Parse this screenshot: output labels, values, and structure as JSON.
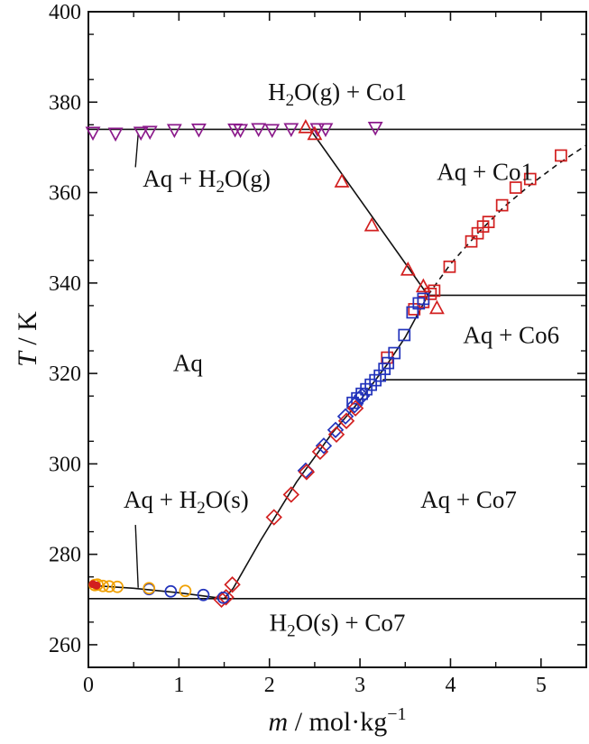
{
  "chart_data": {
    "type": "scatter",
    "xlabel": {
      "symbol": "m",
      "sep": " / ",
      "unit": "mol",
      "dot": "·",
      "unit2": "kg",
      "exp": "−1"
    },
    "ylabel": {
      "symbol": "T",
      "sep": " / K"
    },
    "xlim": [
      0,
      5.5
    ],
    "ylim": [
      255,
      400
    ],
    "x_ticks": [
      "0",
      "1",
      "2",
      "3",
      "4",
      "5"
    ],
    "x_tick_values": [
      0,
      1,
      2,
      3,
      4,
      5
    ],
    "y_ticks": [
      "260",
      "280",
      "300",
      "320",
      "340",
      "360",
      "380",
      "400"
    ],
    "y_tick_values": [
      260,
      280,
      300,
      320,
      340,
      360,
      380,
      400
    ],
    "series": [
      {
        "marker": "triangle-down",
        "color": "#8b1a8b",
        "x": [
          0.05,
          0.3,
          0.58,
          0.68,
          0.95,
          1.22,
          1.62,
          1.68,
          1.88,
          2.03,
          2.24,
          2.53,
          2.62,
          3.17
        ],
        "y": [
          373.2,
          373.0,
          373.2,
          373.4,
          373.8,
          373.9,
          373.9,
          373.8,
          374.0,
          373.8,
          374.0,
          374.0,
          374.0,
          374.3
        ]
      },
      {
        "marker": "triangle-up",
        "color": "#d21f1f",
        "x": [
          2.4,
          2.5,
          2.8,
          3.13,
          3.53,
          3.7,
          3.85
        ],
        "y": [
          374.5,
          373.0,
          362.5,
          352.8,
          343.0,
          339.3,
          334.5
        ]
      },
      {
        "marker": "square",
        "color": "#d21f1f",
        "x": [
          3.3,
          3.6,
          3.7,
          3.78,
          3.82,
          3.99,
          4.23,
          4.3,
          4.36,
          4.42,
          4.57,
          4.72,
          4.88,
          5.22
        ],
        "y": [
          323.5,
          334.2,
          335.8,
          337.6,
          338.3,
          343.6,
          349.2,
          351.0,
          352.5,
          353.5,
          357.2,
          361.1,
          363.0,
          368.2
        ]
      },
      {
        "marker": "square",
        "color": "#2233bb",
        "x": [
          2.92,
          2.97,
          3.02,
          3.07,
          3.12,
          3.17,
          3.22,
          3.27,
          3.31,
          3.38,
          3.49,
          3.58,
          3.65,
          3.7
        ],
        "y": [
          313.5,
          314.5,
          315.5,
          316.5,
          317.5,
          318.5,
          319.5,
          321.0,
          322.3,
          324.5,
          328.5,
          333.5,
          335.5,
          336.5
        ]
      },
      {
        "marker": "diamond",
        "color": "#2233bb",
        "x": [
          2.4,
          2.6,
          2.73,
          2.84,
          2.94,
          3.02
        ],
        "y": [
          298.5,
          304.0,
          307.5,
          310.5,
          313.0,
          315.0
        ]
      },
      {
        "marker": "diamond",
        "color": "#d21f1f",
        "x": [
          1.47,
          1.52,
          1.59,
          2.05,
          2.24,
          2.41,
          2.56,
          2.74,
          2.85,
          2.95
        ],
        "y": [
          270.0,
          270.5,
          273.3,
          288.2,
          293.2,
          298.2,
          302.7,
          306.5,
          309.5,
          312.3
        ]
      },
      {
        "marker": "circle",
        "color": "#2233bb",
        "x": [
          0.67,
          0.91,
          1.27,
          1.49
        ],
        "y": [
          272.3,
          271.8,
          271.0,
          270.4
        ]
      },
      {
        "marker": "circle",
        "color": "#f0a000",
        "x": [
          0.07,
          0.1,
          0.16,
          0.23,
          0.32,
          0.67,
          1.07
        ],
        "y": [
          273.2,
          273.3,
          273.0,
          272.9,
          272.8,
          272.5,
          271.9
        ]
      },
      {
        "marker": "circle-filled",
        "color": "#d21f1f",
        "x": [
          0.05,
          0.09
        ],
        "y": [
          273.4,
          273.1
        ]
      }
    ],
    "lines": [
      {
        "style": "solid",
        "x": [
          0,
          5.5
        ],
        "y": [
          374.0,
          374.0
        ]
      },
      {
        "style": "solid",
        "x": [
          2.45,
          3.75
        ],
        "y": [
          374.0,
          337.3
        ]
      },
      {
        "style": "solid",
        "x": [
          3.75,
          5.5
        ],
        "y": [
          337.3,
          337.3
        ]
      },
      {
        "style": "solid",
        "x": [
          3.25,
          5.5
        ],
        "y": [
          318.6,
          318.6
        ]
      },
      {
        "style": "solid",
        "x": [
          0,
          5.5
        ],
        "y": [
          270.2,
          270.2
        ]
      },
      {
        "style": "solid",
        "x": [
          0,
          0.5,
          1.0,
          1.5
        ],
        "y": [
          273.15,
          272.5,
          271.5,
          270.2
        ]
      },
      {
        "style": "solid",
        "x": [
          1.5,
          1.6,
          1.9,
          2.3,
          2.7,
          3.0,
          3.3,
          3.5,
          3.75
        ],
        "y": [
          270.2,
          272.5,
          283.0,
          296.0,
          307.0,
          314.0,
          322.0,
          328.0,
          337.3
        ]
      },
      {
        "style": "dashed",
        "x": [
          3.75,
          4.0,
          4.3,
          4.6,
          4.9,
          5.2,
          5.5
        ],
        "y": [
          337.3,
          344.2,
          351.0,
          357.0,
          362.0,
          366.5,
          370.5
        ]
      }
    ],
    "regions": [
      {
        "pre": "H",
        "sub": "2",
        "post": "O(g) + Co1",
        "x": 2.75,
        "y": 380.5,
        "anchor": "middle"
      },
      {
        "pre": "Aq + H",
        "sub": "2",
        "post": "O(g)",
        "x": 0.6,
        "y": 361.3,
        "anchor": "start"
      },
      {
        "pre": "Aq + Co1",
        "sub": "",
        "post": "",
        "x": 4.38,
        "y": 362.8,
        "anchor": "middle"
      },
      {
        "pre": "Aq + Co6",
        "sub": "",
        "post": "",
        "x": 4.67,
        "y": 326.7,
        "anchor": "middle"
      },
      {
        "pre": "Aq",
        "sub": "",
        "post": "",
        "x": 1.1,
        "y": 320.5,
        "anchor": "middle"
      },
      {
        "pre": "Aq + H",
        "sub": "2",
        "post": "O(s)",
        "x": 1.08,
        "y": 290.3,
        "anchor": "middle"
      },
      {
        "pre": "Aq + Co7",
        "sub": "",
        "post": "",
        "x": 4.2,
        "y": 290.3,
        "anchor": "middle"
      },
      {
        "pre": "H",
        "sub": "2",
        "post": "O(s) + Co7",
        "x": 2.75,
        "y": 263.1,
        "anchor": "middle"
      }
    ],
    "leaders": [
      {
        "x": [
          0.52,
          0.55
        ],
        "y": [
          365.6,
          373.0
        ]
      },
      {
        "x": [
          0.52,
          0.55
        ],
        "y": [
          286.5,
          272.6
        ]
      }
    ],
    "legend": "none",
    "grid": false
  }
}
